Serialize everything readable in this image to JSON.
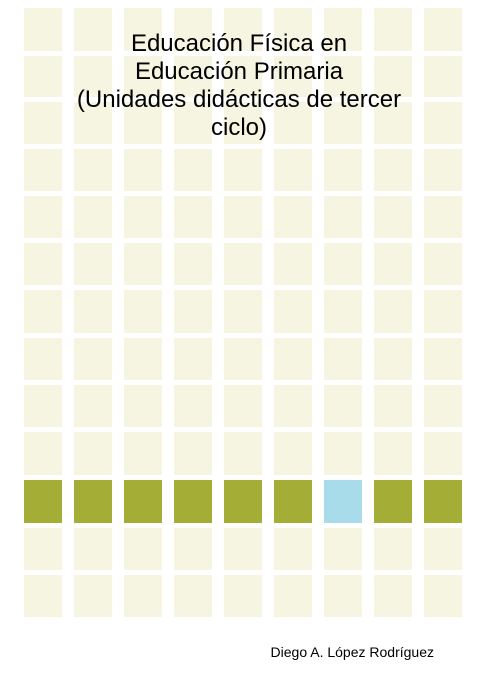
{
  "cover": {
    "title_lines": [
      "Educación Física en",
      "Educación Primaria",
      "(Unidades didácticas de tercer",
      "ciclo)"
    ],
    "author": "Diego A. López Rodríguez"
  },
  "colors": {
    "background": "#ffffff",
    "tile": "#f5f5e1",
    "accent_tile": "#a4ae36",
    "highlight_tile": "#a9dcea"
  },
  "grid_pattern": {
    "columns": 9,
    "rows": 13,
    "accent_row": 10,
    "highlight_column": 6
  }
}
